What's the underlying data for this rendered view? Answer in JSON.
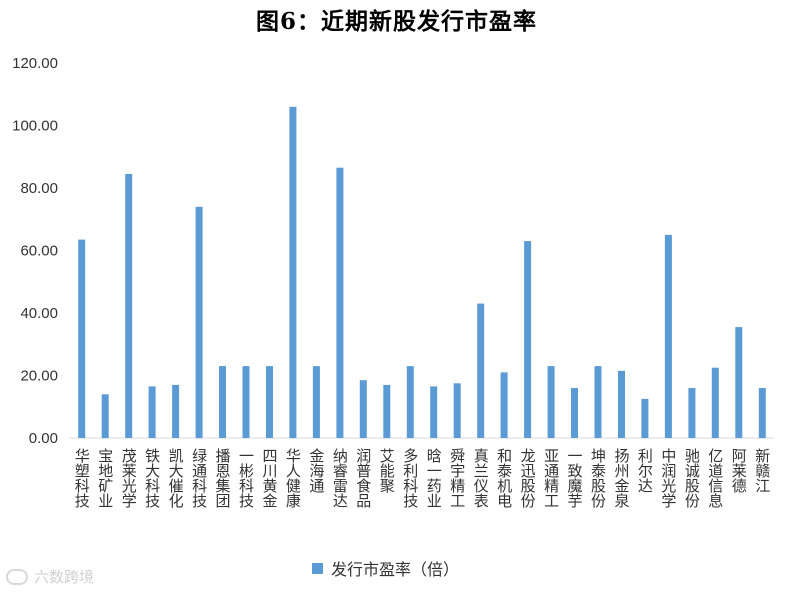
{
  "chart_data": {
    "type": "bar",
    "title": "图6：近期新股发行市盈率",
    "xlabel": "",
    "ylabel": "",
    "ylim": [
      0,
      120
    ],
    "yticks": [
      "0.00",
      "20.00",
      "40.00",
      "60.00",
      "80.00",
      "100.00",
      "120.00"
    ],
    "grid": false,
    "legend_position": "bottom",
    "categories": [
      "华塑科技",
      "宝地矿业",
      "茂莱光学",
      "铁大科技",
      "凯大催化",
      "绿通科技",
      "播恩集团",
      "一彬科技",
      "四川黄金",
      "华人健康",
      "金海通",
      "纳睿雷达",
      "润普食品",
      "艾能聚",
      "多利科技",
      "晗一药业",
      "舜宇精工",
      "真兰仪表",
      "和泰机电",
      "龙迅股份",
      "亚通精工",
      "一致魔芋",
      "坤泰股份",
      "扬州金泉",
      "利尔达",
      "中润光学",
      "驰诚股份",
      "亿道信息",
      "阿莱德",
      "新赣江"
    ],
    "series": [
      {
        "name": "发行市盈率（倍）",
        "color": "#5b9bd5",
        "values": [
          63.5,
          14.0,
          84.5,
          16.5,
          17.0,
          74.0,
          23.0,
          23.0,
          23.0,
          106.0,
          23.0,
          86.5,
          18.5,
          17.0,
          23.0,
          16.5,
          17.5,
          43.0,
          21.0,
          63.0,
          23.0,
          16.0,
          23.0,
          21.5,
          12.5,
          65.0,
          16.0,
          22.5,
          35.5,
          16.0
        ]
      }
    ]
  },
  "legend": {
    "label": "发行市盈率（倍）"
  },
  "watermark": {
    "text": "六数跨境"
  }
}
